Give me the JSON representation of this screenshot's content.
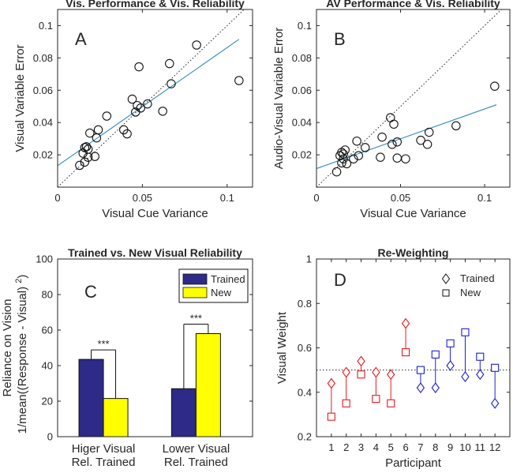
{
  "chart_data": [
    {
      "id": "A",
      "type": "scatter",
      "title": "Vis. Performance & Vis. Reliability",
      "panel_letter": "A",
      "xlabel": "Visual Cue Variance",
      "ylabel": "Visual Variable Error",
      "xlim": [
        0,
        0.115
      ],
      "ylim": [
        0,
        0.11
      ],
      "xticks": [
        0,
        0.05,
        0.1
      ],
      "xtick_labels": [
        "0",
        "0.05",
        "0.1"
      ],
      "yticks": [
        0.02,
        0.04,
        0.06,
        0.08,
        0.1
      ],
      "ytick_labels": [
        "0.02",
        "0.04",
        "0.06",
        "0.08",
        "0.1"
      ],
      "points": [
        [
          0.013,
          0.0135
        ],
        [
          0.015,
          0.021
        ],
        [
          0.016,
          0.0245
        ],
        [
          0.017,
          0.025
        ],
        [
          0.016,
          0.0155
        ],
        [
          0.018,
          0.0185
        ],
        [
          0.018,
          0.0235
        ],
        [
          0.019,
          0.0335
        ],
        [
          0.022,
          0.019
        ],
        [
          0.023,
          0.0305
        ],
        [
          0.024,
          0.0355
        ],
        [
          0.029,
          0.044
        ],
        [
          0.039,
          0.0355
        ],
        [
          0.041,
          0.033
        ],
        [
          0.044,
          0.0545
        ],
        [
          0.046,
          0.0465
        ],
        [
          0.047,
          0.0505
        ],
        [
          0.048,
          0.0745
        ],
        [
          0.049,
          0.049
        ],
        [
          0.053,
          0.0515
        ],
        [
          0.062,
          0.047
        ],
        [
          0.066,
          0.0765
        ],
        [
          0.067,
          0.064
        ],
        [
          0.082,
          0.088
        ],
        [
          0.107,
          0.066
        ]
      ],
      "fit_line": {
        "x": [
          0,
          0.107
        ],
        "y": [
          0.0133,
          0.0915
        ]
      },
      "identity_line": true
    },
    {
      "id": "B",
      "type": "scatter",
      "title": "AV Performance & Vis. Reliability",
      "panel_letter": "B",
      "xlabel": "Visual Cue Variance",
      "ylabel": "Audio-Visual Variable Error",
      "xlim": [
        0,
        0.115
      ],
      "ylim": [
        0,
        0.11
      ],
      "xticks": [
        0,
        0.05,
        0.1
      ],
      "xtick_labels": [
        "0",
        "0.05",
        "0.1"
      ],
      "yticks": [
        0.02,
        0.04,
        0.06,
        0.08,
        0.1
      ],
      "ytick_labels": [
        "0.02",
        "0.04",
        "0.06",
        "0.08",
        "0.1"
      ],
      "points": [
        [
          0.012,
          0.0095
        ],
        [
          0.014,
          0.0195
        ],
        [
          0.015,
          0.0215
        ],
        [
          0.015,
          0.015
        ],
        [
          0.016,
          0.0175
        ],
        [
          0.016,
          0.0205
        ],
        [
          0.017,
          0.023
        ],
        [
          0.018,
          0.0145
        ],
        [
          0.022,
          0.0175
        ],
        [
          0.024,
          0.0285
        ],
        [
          0.025,
          0.0195
        ],
        [
          0.029,
          0.0245
        ],
        [
          0.038,
          0.0185
        ],
        [
          0.039,
          0.031
        ],
        [
          0.044,
          0.043
        ],
        [
          0.045,
          0.0265
        ],
        [
          0.046,
          0.039
        ],
        [
          0.048,
          0.028
        ],
        [
          0.048,
          0.018
        ],
        [
          0.053,
          0.0175
        ],
        [
          0.062,
          0.029
        ],
        [
          0.066,
          0.0265
        ],
        [
          0.067,
          0.034
        ],
        [
          0.083,
          0.038
        ],
        [
          0.106,
          0.0625
        ]
      ],
      "fit_line": {
        "x": [
          0,
          0.107
        ],
        "y": [
          0.0115,
          0.051
        ]
      },
      "identity_line": true
    },
    {
      "id": "C",
      "type": "bar",
      "title": "Trained vs. New Visual Reliability",
      "panel_letter": "C",
      "ylabel": "Reliance on Vision",
      "ylabel_line2": "1/mean((Response - Visual) ",
      "ylabel_sup": "2",
      "ylabel_close": ")",
      "ylim": [
        0,
        100
      ],
      "yticks": [
        0,
        20,
        40,
        60,
        80,
        100
      ],
      "ytick_labels": [
        "0",
        "20",
        "40",
        "60",
        "80",
        "100"
      ],
      "categories": [
        "Higer Visual Rel. Trained",
        "Lower Visual Rel. Trained"
      ],
      "category_lines": [
        [
          "Higer Visual",
          "Rel. Trained"
        ],
        [
          "Lower Visual",
          "Rel. Trained"
        ]
      ],
      "series": [
        {
          "name": "Trained",
          "color": "#2e2a87",
          "values": [
            43.5,
            27
          ]
        },
        {
          "name": "New",
          "color": "#ffff00",
          "values": [
            21.5,
            58
          ]
        }
      ],
      "significance": [
        "***",
        "***"
      ],
      "legend": {
        "placement": "top-right",
        "entries": [
          "Trained",
          "New"
        ]
      }
    },
    {
      "id": "D",
      "type": "scatter",
      "title": "Re-Weighting",
      "panel_letter": "D",
      "xlabel": "Participant",
      "ylabel": "Visual Weight",
      "xlim": [
        0,
        13
      ],
      "ylim": [
        0.2,
        1.0
      ],
      "xticks": [
        1,
        2,
        3,
        4,
        5,
        6,
        7,
        8,
        9,
        10,
        11,
        12
      ],
      "xtick_labels": [
        "1",
        "2",
        "3",
        "4",
        "5",
        "6",
        "7",
        "8",
        "9",
        "10",
        "11",
        "12"
      ],
      "yticks": [
        0.2,
        0.4,
        0.6,
        0.8,
        1.0
      ],
      "ytick_labels": [
        "0.2",
        "0.4",
        "0.6",
        "0.8",
        "1"
      ],
      "reference_line": 0.5,
      "participants": [
        1,
        2,
        3,
        4,
        5,
        6,
        7,
        8,
        9,
        10,
        11,
        12
      ],
      "trained": [
        0.44,
        0.49,
        0.54,
        0.49,
        0.48,
        0.71,
        0.42,
        0.42,
        0.52,
        0.47,
        0.48,
        0.35
      ],
      "new": [
        0.29,
        0.35,
        0.48,
        0.37,
        0.35,
        0.58,
        0.5,
        0.57,
        0.62,
        0.67,
        0.56,
        0.51
      ],
      "group_colors": [
        "#e41a1c",
        "#e41a1c",
        "#e41a1c",
        "#e41a1c",
        "#e41a1c",
        "#e41a1c",
        "#1f1fcf",
        "#1f1fcf",
        "#1f1fcf",
        "#1f1fcf",
        "#1f1fcf",
        "#1f1fcf"
      ],
      "legend": {
        "placement": "top-right",
        "entries": [
          "Trained",
          "New"
        ]
      }
    }
  ],
  "colors": {
    "fit_line": "#2e8bc0",
    "axis": "#262626"
  }
}
